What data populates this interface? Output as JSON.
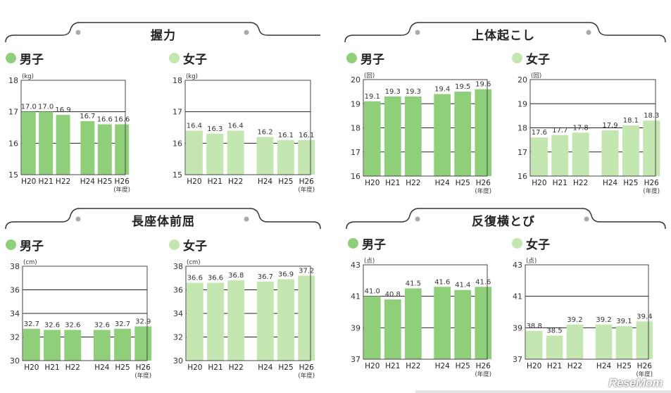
{
  "colors": {
    "male": "#8fcf79",
    "female": "#c4e6b0",
    "grid": "#222222",
    "frame": "#444444"
  },
  "years": [
    "H20",
    "H21",
    "H22",
    "H24",
    "H25",
    "H26"
  ],
  "year_suffix": "(年度)",
  "brand": "ReseMom",
  "sections": [
    {
      "title": "握力",
      "male_label": "男子",
      "female_label": "女子"
    },
    {
      "title": "上体起こし",
      "male_label": "男子",
      "female_label": "女子"
    },
    {
      "title": "長座体前屈",
      "male_label": "男子",
      "female_label": "女子"
    },
    {
      "title": "反復横とび",
      "male_label": "男子",
      "female_label": "女子"
    }
  ],
  "chart_data": [
    {
      "type": "bar",
      "series": [
        {
          "name": "男子",
          "values": [
            17.0,
            17.0,
            16.9,
            16.7,
            16.6,
            16.6
          ]
        }
      ],
      "value_labels": [
        "17.0",
        "17.0",
        "16.9",
        "16.7",
        "16.6",
        "16.6"
      ],
      "unit": "(kg)",
      "ylim": [
        15,
        18
      ],
      "yticks": [
        "15",
        "16",
        "17",
        "18"
      ]
    },
    {
      "type": "bar",
      "series": [
        {
          "name": "女子",
          "values": [
            16.4,
            16.3,
            16.4,
            16.2,
            16.1,
            16.1
          ]
        }
      ],
      "value_labels": [
        "16.4",
        "16.3",
        "16.4",
        "16.2",
        "16.1",
        "16.1"
      ],
      "unit": "(kg)",
      "ylim": [
        15,
        18
      ],
      "yticks": [
        "15",
        "16",
        "17",
        "18"
      ]
    },
    {
      "type": "bar",
      "series": [
        {
          "name": "男子",
          "values": [
            19.1,
            19.3,
            19.3,
            19.4,
            19.5,
            19.6
          ]
        }
      ],
      "value_labels": [
        "19.1",
        "19.3",
        "19.3",
        "19.4",
        "19.5",
        "19.6"
      ],
      "unit": "(回)",
      "ylim": [
        16,
        20
      ],
      "yticks": [
        "16",
        "17",
        "18",
        "19",
        "20"
      ]
    },
    {
      "type": "bar",
      "series": [
        {
          "name": "女子",
          "values": [
            17.6,
            17.7,
            17.8,
            17.9,
            18.1,
            18.3
          ]
        }
      ],
      "value_labels": [
        "17.6",
        "17.7",
        "17.8",
        "17.9",
        "18.1",
        "18.3"
      ],
      "unit": "(回)",
      "ylim": [
        16,
        20
      ],
      "yticks": [
        "16",
        "17",
        "18",
        "19",
        "20"
      ]
    },
    {
      "type": "bar",
      "series": [
        {
          "name": "男子",
          "values": [
            32.7,
            32.6,
            32.6,
            32.6,
            32.7,
            32.9
          ]
        }
      ],
      "value_labels": [
        "32.7",
        "32.6",
        "32.6",
        "32.6",
        "32.7",
        "32.9"
      ],
      "unit": "(cm)",
      "ylim": [
        30,
        38
      ],
      "yticks": [
        "30",
        "32",
        "34",
        "36",
        "38"
      ]
    },
    {
      "type": "bar",
      "series": [
        {
          "name": "女子",
          "values": [
            36.6,
            36.6,
            36.8,
            36.7,
            36.9,
            37.2
          ]
        }
      ],
      "value_labels": [
        "36.6",
        "36.6",
        "36.8",
        "36.7",
        "36.9",
        "37.2"
      ],
      "unit": "(cm)",
      "ylim": [
        30,
        38
      ],
      "yticks": [
        "30",
        "32",
        "34",
        "36",
        "38"
      ]
    },
    {
      "type": "bar",
      "series": [
        {
          "name": "男子",
          "values": [
            41.0,
            40.8,
            41.5,
            41.6,
            41.4,
            41.6
          ]
        }
      ],
      "value_labels": [
        "41.0",
        "40.8",
        "41.5",
        "41.6",
        "41.4",
        "41.6"
      ],
      "unit": "(点)",
      "ylim": [
        37,
        43
      ],
      "yticks": [
        "37",
        "39",
        "41",
        "43"
      ]
    },
    {
      "type": "bar",
      "series": [
        {
          "name": "女子",
          "values": [
            38.8,
            38.5,
            39.2,
            39.2,
            39.1,
            39.4
          ]
        }
      ],
      "value_labels": [
        "38.8",
        "38.5",
        "39.2",
        "39.2",
        "39.1",
        "39.4"
      ],
      "unit": "(点)",
      "ylim": [
        37,
        43
      ],
      "yticks": [
        "37",
        "39",
        "41",
        "43"
      ]
    }
  ]
}
